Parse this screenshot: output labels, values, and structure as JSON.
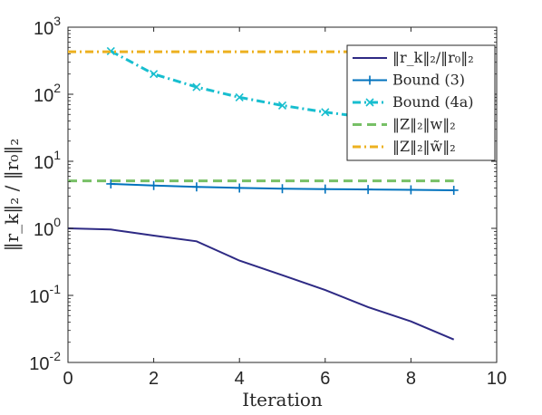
{
  "chart_data": {
    "type": "line",
    "xlabel": "Iteration",
    "ylabel": "‖r_k‖₂ / ‖r₀‖₂",
    "xlim": [
      0,
      10
    ],
    "ylim": [
      0.01,
      1000
    ],
    "yscale": "log",
    "x_ticks": [
      0,
      2,
      4,
      6,
      8,
      10
    ],
    "y_ticks": [
      {
        "value": 0.01,
        "mantissa": "10",
        "exponent": "-2"
      },
      {
        "value": 0.1,
        "mantissa": "10",
        "exponent": "-1"
      },
      {
        "value": 1,
        "mantissa": "10",
        "exponent": "0"
      },
      {
        "value": 10,
        "mantissa": "10",
        "exponent": "1"
      },
      {
        "value": 100,
        "mantissa": "10",
        "exponent": "2"
      },
      {
        "value": 1000,
        "mantissa": "10",
        "exponent": "3"
      }
    ],
    "grid": false,
    "legend_position": "top-right",
    "series": [
      {
        "name": "‖r_k‖₂/‖r₀‖₂",
        "color": "#2e2a84",
        "style": "solid",
        "marker": "none",
        "x": [
          0,
          1,
          2,
          3,
          4,
          5,
          6,
          7,
          8,
          9
        ],
        "y": [
          1.0,
          0.96,
          0.78,
          0.64,
          0.33,
          0.2,
          0.12,
          0.067,
          0.041,
          0.022
        ]
      },
      {
        "name": "Bound (3)",
        "color": "#0072bd",
        "style": "solid",
        "marker": "plus",
        "x": [
          1,
          2,
          3,
          4,
          5,
          6,
          7,
          8,
          9
        ],
        "y": [
          4.6,
          4.35,
          4.15,
          4.0,
          3.9,
          3.85,
          3.8,
          3.75,
          3.7
        ]
      },
      {
        "name": "Bound (4a)",
        "color": "#17becf",
        "style": "dashdot",
        "marker": "x",
        "x": [
          1,
          2,
          3,
          4,
          5,
          6,
          7
        ],
        "y": [
          440,
          200,
          128,
          90,
          68,
          54,
          45
        ]
      },
      {
        "name": "‖Z‖₂‖w‖₂",
        "color": "#77c066",
        "style": "dashed",
        "marker": "none",
        "x": [
          0,
          9
        ],
        "y": [
          5.1,
          5.1
        ]
      },
      {
        "name": "‖Z‖₂‖w̃‖₂",
        "color": "#edb120",
        "style": "dashdot",
        "marker": "none",
        "x": [
          0,
          9
        ],
        "y": [
          430,
          430
        ]
      }
    ]
  }
}
